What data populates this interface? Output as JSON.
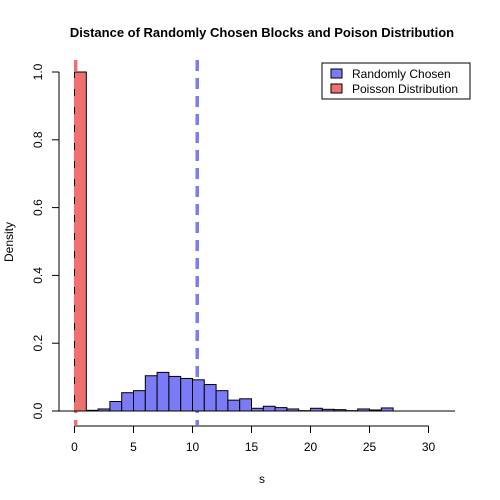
{
  "chart_data": {
    "type": "bar",
    "title": "Distance of Randomly Chosen Blocks and Poison Distribution",
    "xlabel": "s",
    "ylabel": "Density",
    "xlim": [
      -1.5,
      32
    ],
    "ylim": [
      0,
      1.0
    ],
    "xticks": [
      "0",
      "5",
      "10",
      "15",
      "20",
      "25",
      "30"
    ],
    "yticks": [
      "0.0",
      "0.2",
      "0.4",
      "0.6",
      "0.8",
      "1.0"
    ],
    "grid": false,
    "legend_position": "top-right",
    "series": [
      {
        "name": "Randomly Chosen",
        "color": "#7b7bf7",
        "bins": [
          {
            "x0": 0,
            "x1": 1,
            "value": 0.0
          },
          {
            "x0": 1,
            "x1": 2,
            "value": 0.002
          },
          {
            "x0": 2,
            "x1": 3,
            "value": 0.006
          },
          {
            "x0": 3,
            "x1": 4,
            "value": 0.028
          },
          {
            "x0": 4,
            "x1": 5,
            "value": 0.054
          },
          {
            "x0": 5,
            "x1": 6,
            "value": 0.06
          },
          {
            "x0": 6,
            "x1": 7,
            "value": 0.104
          },
          {
            "x0": 7,
            "x1": 8,
            "value": 0.114
          },
          {
            "x0": 8,
            "x1": 9,
            "value": 0.102
          },
          {
            "x0": 9,
            "x1": 10,
            "value": 0.096
          },
          {
            "x0": 10,
            "x1": 11,
            "value": 0.092
          },
          {
            "x0": 11,
            "x1": 12,
            "value": 0.078
          },
          {
            "x0": 12,
            "x1": 13,
            "value": 0.06
          },
          {
            "x0": 13,
            "x1": 14,
            "value": 0.032
          },
          {
            "x0": 14,
            "x1": 15,
            "value": 0.036
          },
          {
            "x0": 15,
            "x1": 16,
            "value": 0.008
          },
          {
            "x0": 16,
            "x1": 17,
            "value": 0.014
          },
          {
            "x0": 17,
            "x1": 18,
            "value": 0.01
          },
          {
            "x0": 18,
            "x1": 19,
            "value": 0.006
          },
          {
            "x0": 19,
            "x1": 20,
            "value": 0.001
          },
          {
            "x0": 20,
            "x1": 21,
            "value": 0.008
          },
          {
            "x0": 21,
            "x1": 22,
            "value": 0.005
          },
          {
            "x0": 22,
            "x1": 23,
            "value": 0.004
          },
          {
            "x0": 23,
            "x1": 24,
            "value": 0.001
          },
          {
            "x0": 24,
            "x1": 25,
            "value": 0.006
          },
          {
            "x0": 25,
            "x1": 26,
            "value": 0.003
          },
          {
            "x0": 26,
            "x1": 27,
            "value": 0.009
          }
        ]
      },
      {
        "name": "Poisson Distribution",
        "color": "#f07070",
        "bins": [
          {
            "x0": 0,
            "x1": 1,
            "value": 1.0
          }
        ]
      }
    ],
    "reference_lines": [
      {
        "x": 10.4,
        "color": "#7b7bf7",
        "style": "dashed"
      },
      {
        "x": 0.1,
        "color": "#f07070",
        "style": "dashed"
      }
    ]
  }
}
